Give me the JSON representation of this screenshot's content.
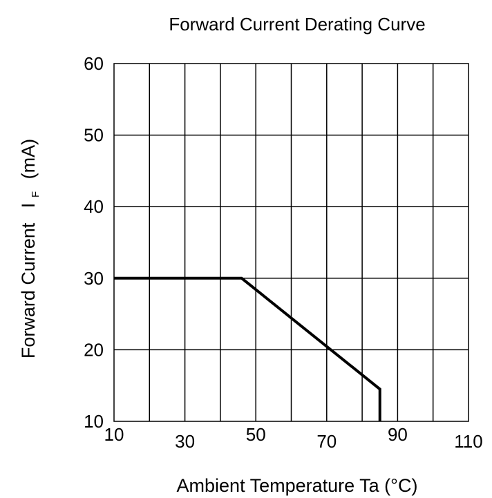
{
  "chart_data": {
    "type": "line",
    "title": "Forward Current Derating Curve",
    "xlabel": "Ambient Temperature Ta (°C)",
    "ylabel": {
      "prefix": "Forward Current",
      "symbol": "I",
      "subscript": "F",
      "unit": "(mA)"
    },
    "xlim": [
      10,
      110
    ],
    "ylim": [
      10,
      60
    ],
    "x_ticks": [
      10,
      30,
      50,
      70,
      90,
      110
    ],
    "y_ticks": [
      10,
      20,
      30,
      40,
      50,
      60
    ],
    "grid": true,
    "grid_x_step": 10,
    "grid_y_step": 10,
    "series": [
      {
        "x": [
          10,
          46,
          85,
          85
        ],
        "y": [
          30,
          30,
          14.5,
          10
        ],
        "color": "#000000"
      }
    ]
  }
}
